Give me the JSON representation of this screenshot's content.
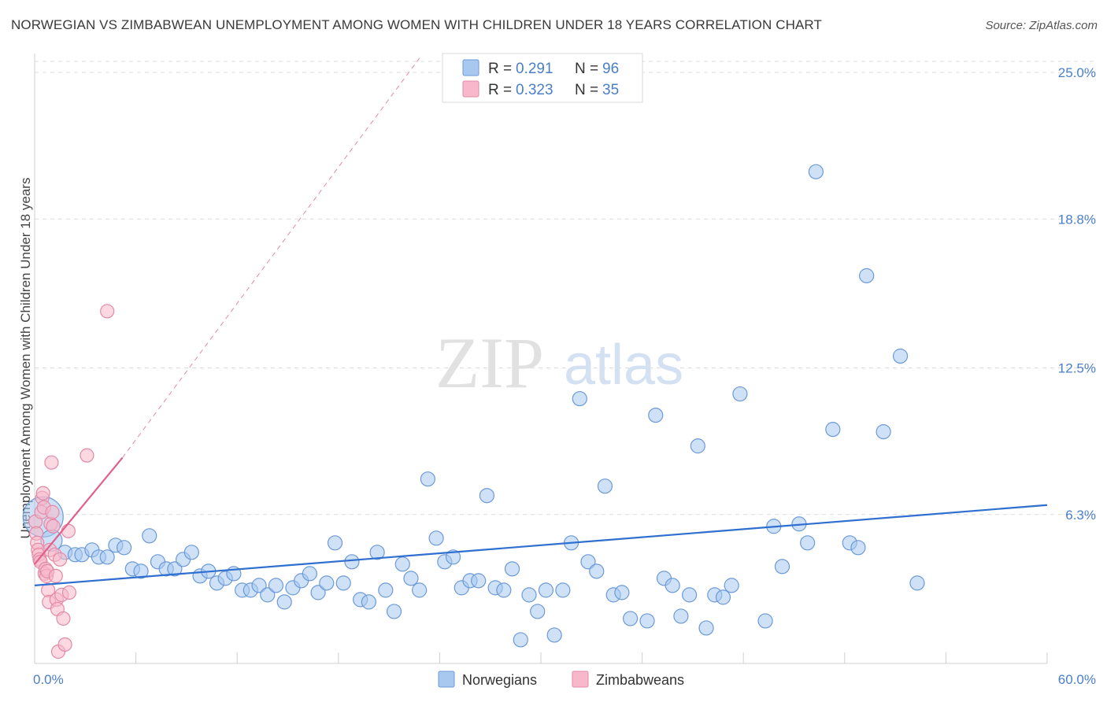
{
  "header": {
    "title": "NORWEGIAN VS ZIMBABWEAN UNEMPLOYMENT AMONG WOMEN WITH CHILDREN UNDER 18 YEARS CORRELATION CHART",
    "source": "Source: ZipAtlas.com"
  },
  "watermark": {
    "zip": "ZIP",
    "atlas": "atlas"
  },
  "colors": {
    "blue_fill": "#a8c8f0",
    "blue_stroke": "#6c9ad8",
    "blue_line": "#2f6fcf",
    "pink_fill": "#f7b8cb",
    "pink_stroke": "#e48aa6",
    "pink_line": "#e06088",
    "grid": "#dcdcdc",
    "tick_text": "#4a7fc8"
  },
  "legend": {
    "rows": [
      {
        "r_label": "R = ",
        "r_value": "0.291",
        "n_label": "N = ",
        "n_value": "96"
      },
      {
        "r_label": "R = ",
        "r_value": "0.323",
        "n_label": "N = ",
        "n_value": "35"
      }
    ]
  },
  "bottom_legend": {
    "items": [
      "Norwegians",
      "Zimbabweans"
    ]
  },
  "chart_data": {
    "type": "scatter",
    "xlabel": "",
    "ylabel": "Unemployment Among Women with Children Under 18 years",
    "xlim": [
      0,
      60
    ],
    "ylim": [
      0,
      25.6
    ],
    "x_tick_labels": [
      {
        "value": 0,
        "label": "0.0%"
      },
      {
        "value": 60,
        "label": "60.0%"
      }
    ],
    "x_minor_ticks": [
      6,
      12,
      18,
      24,
      30,
      36,
      42,
      48,
      54,
      60
    ],
    "y_ticks": [
      {
        "value": 6.3,
        "label": "6.3%"
      },
      {
        "value": 12.5,
        "label": "12.5%"
      },
      {
        "value": 18.8,
        "label": "18.8%"
      },
      {
        "value": 25.0,
        "label": "25.0%"
      }
    ],
    "grid": true,
    "legend_placement": "top-center",
    "series": [
      {
        "name": "Norwegians",
        "r": 0.291,
        "n": 96,
        "trend": {
          "x": [
            0,
            60
          ],
          "y": [
            3.3,
            6.7
          ]
        },
        "points": [
          [
            0.5,
            6.2,
            34
          ],
          [
            1.0,
            5.2,
            18
          ],
          [
            1.8,
            4.7,
            10
          ],
          [
            2.4,
            4.6,
            10
          ],
          [
            2.8,
            4.6,
            10
          ],
          [
            3.4,
            4.8,
            10
          ],
          [
            3.8,
            4.5,
            10
          ],
          [
            4.3,
            4.5,
            10
          ],
          [
            4.8,
            5.0,
            10
          ],
          [
            5.3,
            4.9,
            10
          ],
          [
            5.8,
            4.0,
            10
          ],
          [
            6.3,
            3.9,
            10
          ],
          [
            6.8,
            5.4,
            10
          ],
          [
            7.3,
            4.3,
            10
          ],
          [
            7.8,
            4.0,
            10
          ],
          [
            8.3,
            4.0,
            10
          ],
          [
            8.8,
            4.4,
            10
          ],
          [
            9.3,
            4.7,
            10
          ],
          [
            9.8,
            3.7,
            10
          ],
          [
            10.3,
            3.9,
            10
          ],
          [
            10.8,
            3.4,
            10
          ],
          [
            11.3,
            3.6,
            10
          ],
          [
            11.8,
            3.8,
            10
          ],
          [
            12.3,
            3.1,
            10
          ],
          [
            12.8,
            3.1,
            10
          ],
          [
            13.3,
            3.3,
            10
          ],
          [
            13.8,
            2.9,
            10
          ],
          [
            14.3,
            3.3,
            10
          ],
          [
            14.8,
            2.6,
            10
          ],
          [
            15.3,
            3.2,
            10
          ],
          [
            15.8,
            3.5,
            10
          ],
          [
            16.3,
            3.8,
            10
          ],
          [
            16.8,
            3.0,
            10
          ],
          [
            17.3,
            3.4,
            10
          ],
          [
            17.8,
            5.1,
            10
          ],
          [
            18.3,
            3.4,
            10
          ],
          [
            18.8,
            4.3,
            10
          ],
          [
            19.3,
            2.7,
            10
          ],
          [
            19.8,
            2.6,
            10
          ],
          [
            20.3,
            4.7,
            10
          ],
          [
            20.8,
            3.1,
            10
          ],
          [
            21.3,
            2.2,
            10
          ],
          [
            21.8,
            4.2,
            10
          ],
          [
            22.3,
            3.6,
            10
          ],
          [
            22.8,
            3.1,
            10
          ],
          [
            23.3,
            7.8,
            10
          ],
          [
            23.8,
            5.3,
            10
          ],
          [
            24.3,
            4.3,
            10
          ],
          [
            24.8,
            4.5,
            10
          ],
          [
            25.3,
            3.2,
            10
          ],
          [
            25.8,
            3.5,
            10
          ],
          [
            26.3,
            3.5,
            10
          ],
          [
            26.8,
            7.1,
            10
          ],
          [
            27.3,
            3.2,
            10
          ],
          [
            27.8,
            3.1,
            10
          ],
          [
            28.3,
            4.0,
            10
          ],
          [
            28.8,
            1.0,
            10
          ],
          [
            29.3,
            2.9,
            10
          ],
          [
            29.8,
            2.2,
            10
          ],
          [
            30.3,
            3.1,
            10
          ],
          [
            30.8,
            1.2,
            10
          ],
          [
            31.3,
            3.1,
            10
          ],
          [
            31.8,
            5.1,
            10
          ],
          [
            32.3,
            11.2,
            10
          ],
          [
            32.8,
            4.3,
            10
          ],
          [
            33.3,
            3.9,
            10
          ],
          [
            33.8,
            7.5,
            10
          ],
          [
            34.3,
            2.9,
            10
          ],
          [
            34.8,
            3.0,
            10
          ],
          [
            35.3,
            1.9,
            10
          ],
          [
            36.3,
            1.8,
            10
          ],
          [
            36.8,
            10.5,
            10
          ],
          [
            37.3,
            3.6,
            10
          ],
          [
            37.8,
            3.3,
            10
          ],
          [
            38.3,
            2.0,
            10
          ],
          [
            38.8,
            2.9,
            10
          ],
          [
            39.3,
            9.2,
            10
          ],
          [
            39.8,
            1.5,
            10
          ],
          [
            40.3,
            2.9,
            10
          ],
          [
            40.8,
            2.8,
            10
          ],
          [
            41.3,
            3.3,
            10
          ],
          [
            41.8,
            11.4,
            10
          ],
          [
            43.3,
            1.8,
            10
          ],
          [
            43.8,
            5.8,
            10
          ],
          [
            44.3,
            4.1,
            10
          ],
          [
            45.3,
            5.9,
            10
          ],
          [
            45.8,
            5.1,
            10
          ],
          [
            46.3,
            20.8,
            10
          ],
          [
            47.3,
            9.9,
            10
          ],
          [
            48.3,
            5.1,
            10
          ],
          [
            48.8,
            4.9,
            10
          ],
          [
            49.3,
            16.4,
            10
          ],
          [
            50.3,
            9.8,
            10
          ],
          [
            51.3,
            13.0,
            10
          ],
          [
            52.3,
            3.4,
            10
          ]
        ]
      },
      {
        "name": "Zimbabweans",
        "r": 0.323,
        "n": 35,
        "trend": {
          "x": [
            0,
            5.2
          ],
          "y": [
            4.2,
            8.7
          ]
        },
        "trend_extended": {
          "x": [
            5.2,
            22.8
          ],
          "y": [
            8.7,
            25.6
          ]
        },
        "points": [
          [
            0.05,
            6.0,
            10
          ],
          [
            0.1,
            5.5,
            10
          ],
          [
            0.15,
            5.1,
            10
          ],
          [
            0.2,
            4.8,
            10
          ],
          [
            0.25,
            4.6,
            10
          ],
          [
            0.3,
            4.4,
            10
          ],
          [
            0.35,
            4.3,
            10
          ],
          [
            0.4,
            6.4,
            10
          ],
          [
            0.45,
            7.0,
            10
          ],
          [
            0.5,
            7.2,
            10
          ],
          [
            0.55,
            6.6,
            10
          ],
          [
            0.6,
            3.8,
            10
          ],
          [
            0.65,
            4.0,
            10
          ],
          [
            0.7,
            3.7,
            10
          ],
          [
            0.75,
            3.9,
            10
          ],
          [
            0.8,
            3.1,
            10
          ],
          [
            0.85,
            2.6,
            10
          ],
          [
            0.9,
            4.8,
            10
          ],
          [
            0.95,
            5.9,
            10
          ],
          [
            1.0,
            8.5,
            10
          ],
          [
            1.05,
            6.4,
            10
          ],
          [
            1.1,
            5.8,
            10
          ],
          [
            1.2,
            4.6,
            10
          ],
          [
            1.25,
            3.7,
            10
          ],
          [
            1.3,
            2.7,
            10
          ],
          [
            1.35,
            2.3,
            10
          ],
          [
            1.4,
            0.5,
            10
          ],
          [
            1.5,
            4.4,
            10
          ],
          [
            1.6,
            2.9,
            10
          ],
          [
            1.7,
            1.9,
            10
          ],
          [
            1.8,
            0.8,
            10
          ],
          [
            2.0,
            5.6,
            10
          ],
          [
            2.05,
            3.0,
            10
          ],
          [
            3.1,
            8.8,
            10
          ],
          [
            4.3,
            14.9,
            10
          ]
        ]
      }
    ]
  }
}
